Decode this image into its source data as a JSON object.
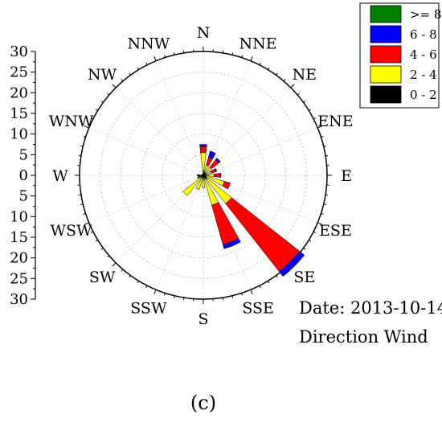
{
  "chart_data": {
    "type": "polar-bar",
    "subtype": "wind-rose",
    "directions": [
      "N",
      "NNE",
      "NE",
      "ENE",
      "E",
      "ESE",
      "SE",
      "SSE",
      "S",
      "SSW",
      "SW",
      "WSW",
      "W",
      "WNW",
      "NW",
      "NNW"
    ],
    "speed_bins": [
      {
        "name": "0 - 2",
        "color": "#000000"
      },
      {
        "name": "2 - 4",
        "color": "#ffff00"
      },
      {
        "name": "4 - 6",
        "color": "#ff0000"
      },
      {
        "name": "6 - 8",
        "color": "#0000ff"
      },
      {
        "name": ">= 8",
        "color": "#008000"
      }
    ],
    "series": [
      {
        "name": "0 - 2",
        "values": [
          1.0,
          0.8,
          0.7,
          0.7,
          0.6,
          0.8,
          1.2,
          1.0,
          0.5,
          0.6,
          0.8,
          1.5,
          1.5,
          0.4,
          0.4,
          0.4
        ]
      },
      {
        "name": "2 - 4",
        "values": [
          4.5,
          1.8,
          1.8,
          1.3,
          2.0,
          4.5,
          7.5,
          6.5,
          2.5,
          3.0,
          5.5,
          0,
          0,
          0,
          0,
          0
        ]
      },
      {
        "name": "4 - 6",
        "values": [
          1.5,
          2.0,
          2.3,
          1.2,
          1.5,
          1.5,
          21.0,
          10.0,
          0,
          0,
          0,
          0,
          0,
          0,
          0,
          0
        ]
      },
      {
        "name": "6 - 8",
        "values": [
          0.5,
          1.5,
          0.5,
          0.2,
          0.2,
          0,
          1.5,
          1.0,
          0,
          0,
          0,
          0,
          0,
          0,
          0,
          0
        ]
      },
      {
        "name": ">= 8",
        "values": [
          0,
          0,
          0,
          0,
          0,
          0,
          0,
          0,
          0,
          0,
          0,
          0,
          0,
          0,
          0,
          0
        ]
      }
    ],
    "radial_max": 30,
    "radial_ticks": [
      30,
      25,
      20,
      15,
      10,
      5,
      0,
      5,
      10,
      15,
      20,
      25,
      30
    ],
    "grid": true,
    "legend_position": "top-right",
    "annotations": [
      "Date: 2013-10-14",
      "Direction Wind"
    ],
    "caption": "(c)"
  }
}
